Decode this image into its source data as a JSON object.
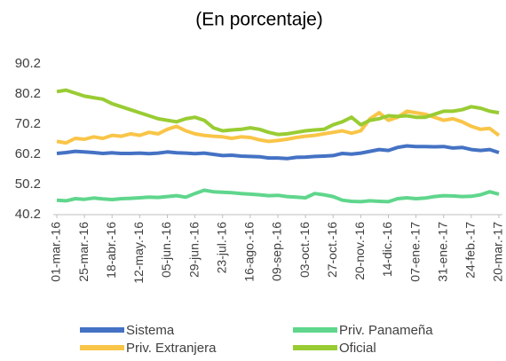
{
  "chart_data": {
    "type": "line",
    "title": "(En porcentaje)",
    "categories": [
      "01-mar.-16",
      null,
      null,
      "25-mar.-16",
      null,
      null,
      "18-abr.-16",
      null,
      null,
      "12-may.-16",
      null,
      null,
      "05-jun.-16",
      null,
      null,
      "29-jun.-16",
      null,
      null,
      "23-jul.-16",
      null,
      null,
      "16-ago.-16",
      null,
      null,
      "09-sep.-16",
      null,
      null,
      "03-oct.-16",
      null,
      null,
      "27-oct.-16",
      null,
      null,
      "20-nov.-16",
      null,
      null,
      "14-dic.-16",
      null,
      null,
      "07-ene.-17",
      null,
      null,
      "31-ene.-17",
      null,
      null,
      "24-feb.-17",
      null,
      null,
      "20-mar.-17"
    ],
    "series": [
      {
        "name": "Sistema",
        "color": "#4472c4",
        "values": [
          60.5,
          60.8,
          61.2,
          61,
          60.8,
          60.5,
          60.7,
          60.5,
          60.5,
          60.6,
          60.4,
          60.6,
          61,
          60.7,
          60.6,
          60.4,
          60.6,
          60.2,
          59.8,
          59.9,
          59.6,
          59.5,
          59.4,
          59,
          59,
          58.8,
          59.2,
          59.3,
          59.5,
          59.6,
          59.8,
          60.5,
          60.3,
          60.6,
          61.2,
          61.8,
          61.5,
          62.5,
          63,
          62.8,
          62.8,
          62.7,
          62.8,
          62.3,
          62.5,
          61.8,
          61.5,
          61.8,
          60.8
        ]
      },
      {
        "name": "Priv. Panameña",
        "color": "#5fd68c",
        "values": [
          45,
          44.8,
          45.5,
          45.3,
          45.7,
          45.4,
          45.2,
          45.5,
          45.6,
          45.8,
          46,
          45.9,
          46.2,
          46.5,
          46,
          47.2,
          48.3,
          47.8,
          47.6,
          47.5,
          47.2,
          47,
          46.8,
          46.5,
          46.6,
          46.2,
          46,
          45.8,
          47.2,
          46.8,
          46.2,
          45,
          44.6,
          44.5,
          44.8,
          44.6,
          44.5,
          45.5,
          45.8,
          45.5,
          45.7,
          46.2,
          46.5,
          46.4,
          46.2,
          46.3,
          46.8,
          47.8,
          47
        ]
      },
      {
        "name": "Priv. Extranjera",
        "color": "#f9c548",
        "values": [
          64.5,
          64,
          65.5,
          65.2,
          66,
          65.5,
          66.5,
          66.2,
          67,
          66.5,
          67.5,
          67,
          68.5,
          69.5,
          68,
          67,
          66.5,
          66.2,
          66,
          65.5,
          66,
          65.8,
          65,
          64.5,
          64.8,
          65.2,
          65.8,
          66.2,
          66.5,
          67,
          67.5,
          68,
          67.2,
          68,
          72,
          74,
          71.5,
          72.5,
          74.5,
          74,
          73.5,
          72.5,
          71.5,
          72,
          71,
          69.5,
          68.5,
          68.8,
          66.5
        ]
      },
      {
        "name": "Oficial",
        "color": "#99cc33",
        "values": [
          81,
          81.5,
          80.5,
          79.5,
          79,
          78.5,
          77,
          76,
          75,
          74,
          73,
          72,
          71.5,
          71,
          72,
          72.5,
          71.5,
          69,
          68,
          68.3,
          68.5,
          69,
          68.5,
          67.5,
          66.8,
          67,
          67.5,
          68,
          68.3,
          68.5,
          70,
          71,
          72.5,
          70,
          71.5,
          72,
          73,
          72.8,
          73,
          72.5,
          72.5,
          73.5,
          74.5,
          74.5,
          75,
          76,
          75.5,
          74.5,
          74
        ]
      }
    ],
    "ylim": [
      40.2,
      90.2
    ],
    "yticks": [
      40.2,
      50.2,
      60.2,
      70.2,
      80.2,
      90.2
    ],
    "grid": false,
    "legend": "bottom"
  }
}
